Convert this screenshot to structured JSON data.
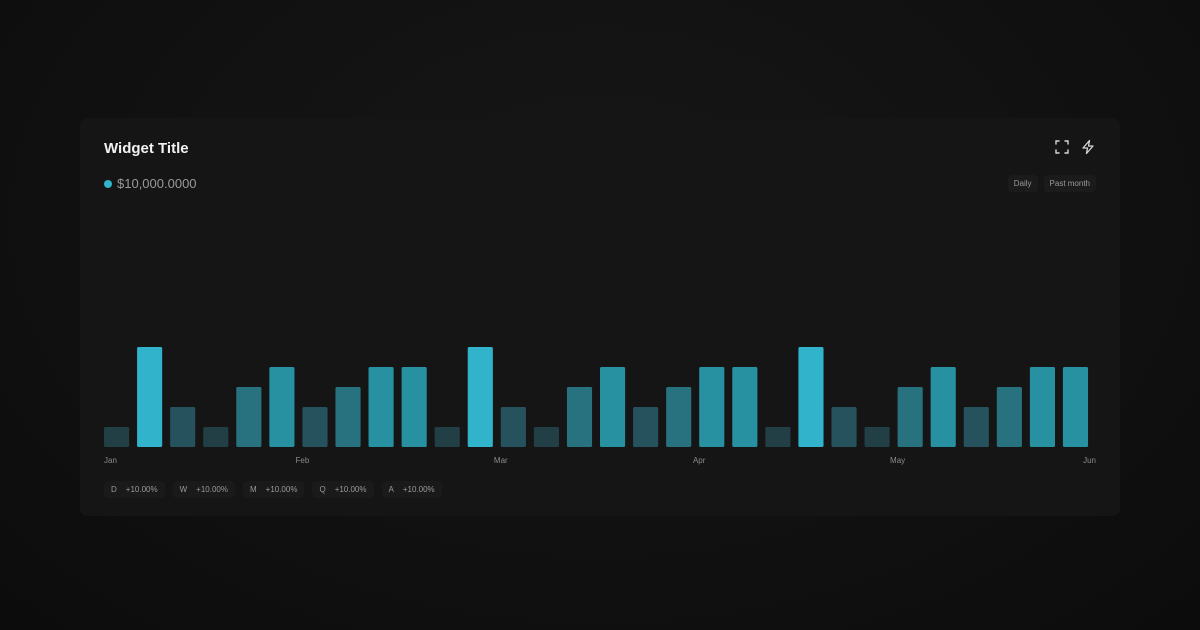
{
  "widget": {
    "title": "Widget Title",
    "value": "$10,000.0000",
    "value_dot_color": "#31b3cc",
    "icons": [
      "expand-icon",
      "lightning-icon"
    ],
    "filters": [
      "Daily",
      "Past month"
    ]
  },
  "chips": [
    {
      "label": "D",
      "change": "+10.00%"
    },
    {
      "label": "W",
      "change": "+10.00%"
    },
    {
      "label": "M",
      "change": "+10.00%"
    },
    {
      "label": "Q",
      "change": "+10.00%"
    },
    {
      "label": "A",
      "change": "+10.00%"
    }
  ],
  "chart_data": {
    "type": "bar",
    "values": [
      1,
      5,
      2,
      1,
      3,
      4,
      2,
      3,
      4,
      4,
      1,
      5,
      2,
      1,
      3,
      4,
      2,
      3,
      4,
      4,
      1,
      5,
      2,
      1,
      3,
      4,
      2,
      3,
      4,
      4
    ],
    "ylim": [
      0,
      10
    ],
    "tick_labels": [
      "Jan",
      "Feb",
      "Mar",
      "Apr",
      "May",
      "Jun"
    ],
    "grid": false,
    "level_colors": [
      "#213f45",
      "#26525d",
      "#28717f",
      "#2791a2",
      "#31b3cc"
    ]
  }
}
